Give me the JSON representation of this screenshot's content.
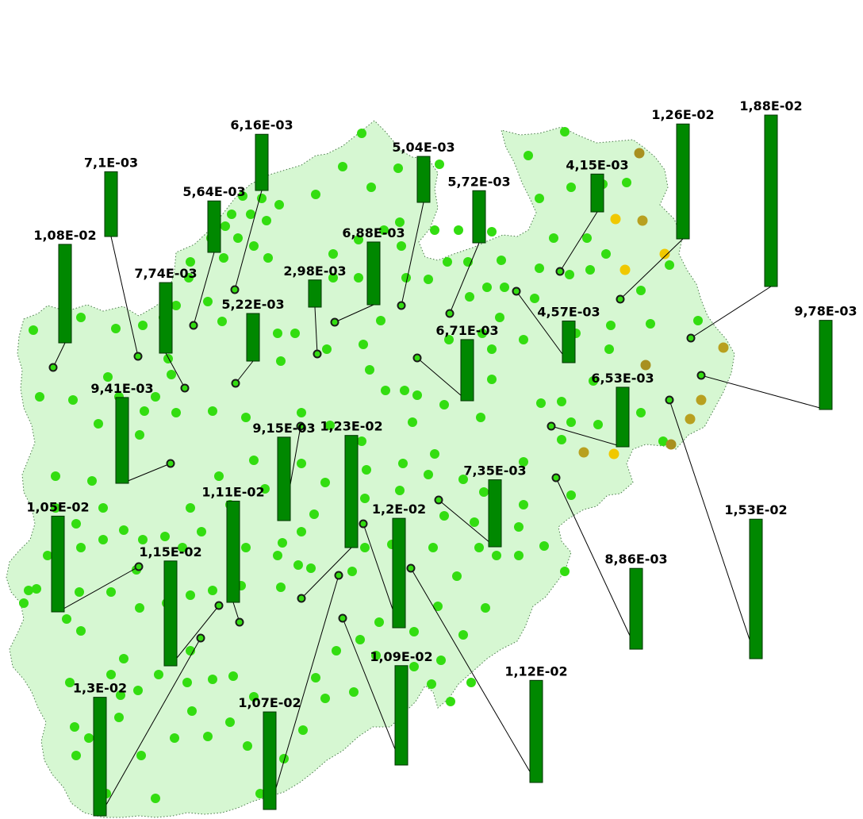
{
  "map": {
    "colors": {
      "region_fill": "#d6f7d2",
      "bar_fill": "#008800",
      "dot_green": "#33dd11",
      "dot_yellow": "#f0c800",
      "dot_olive": "#b8a020",
      "dot_brown": "#a89020"
    },
    "symbols": [
      {
        "label": "1,88E-02",
        "value": 0.0188
      },
      {
        "label": "1,26E-02",
        "value": 0.0126
      },
      {
        "label": "6,16E-03",
        "value": 0.00616
      },
      {
        "label": "7,1E-03",
        "value": 0.0071
      },
      {
        "label": "5,04E-03",
        "value": 0.00504
      },
      {
        "label": "5,72E-03",
        "value": 0.00572
      },
      {
        "label": "4,15E-03",
        "value": 0.00415
      },
      {
        "label": "5,64E-03",
        "value": 0.00564
      },
      {
        "label": "1,08E-02",
        "value": 0.0108
      },
      {
        "label": "6,88E-03",
        "value": 0.00688
      },
      {
        "label": "7,74E-03",
        "value": 0.00774
      },
      {
        "label": "2,98E-03",
        "value": 0.00298
      },
      {
        "label": "9,78E-03",
        "value": 0.00978
      },
      {
        "label": "5,22E-03",
        "value": 0.00522
      },
      {
        "label": "4,57E-03",
        "value": 0.00457
      },
      {
        "label": "6,71E-03",
        "value": 0.00671
      },
      {
        "label": "9,41E-03",
        "value": 0.00941
      },
      {
        "label": "6,53E-03",
        "value": 0.00653
      },
      {
        "label": "1,23E-02",
        "value": 0.0123
      },
      {
        "label": "9,15E-03",
        "value": 0.00915
      },
      {
        "label": "1,2E-02",
        "value": 0.012
      },
      {
        "label": "1,53E-02",
        "value": 0.0153
      },
      {
        "label": "1,11E-02",
        "value": 0.0111
      },
      {
        "label": "7,35E-03",
        "value": 0.00735
      },
      {
        "label": "1,05E-02",
        "value": 0.0105
      },
      {
        "label": "1,15E-02",
        "value": 0.0115
      },
      {
        "label": "8,86E-03",
        "value": 0.00886
      },
      {
        "label": "1,09E-02",
        "value": 0.0109
      },
      {
        "label": "1,3E-02",
        "value": 0.013
      },
      {
        "label": "1,12E-02",
        "value": 0.0112
      },
      {
        "label": "1,07E-02",
        "value": 0.0107
      }
    ]
  }
}
